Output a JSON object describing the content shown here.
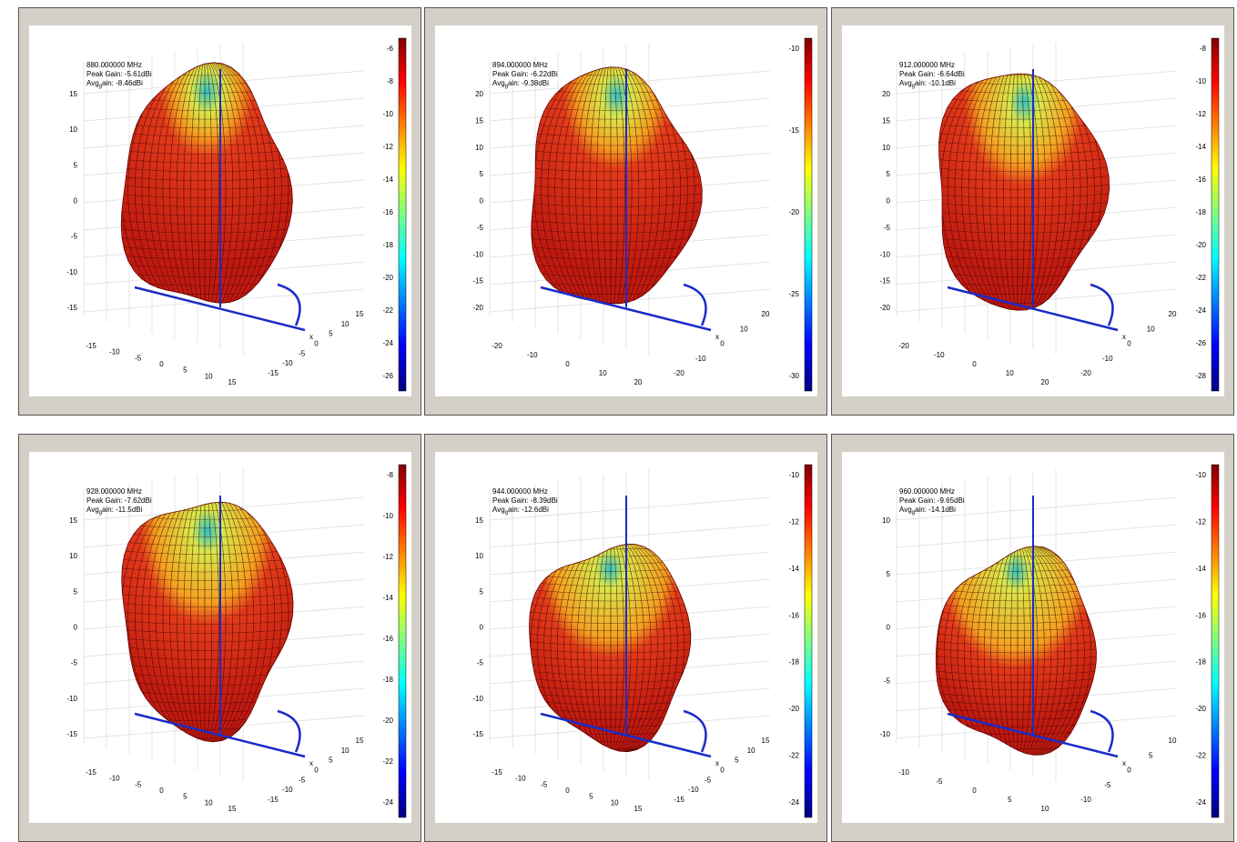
{
  "panels": [
    {
      "freq": "880.000000 MHz",
      "peak": "Peak Gain: -5.61dBi",
      "avg": [
        "Avg",
        "g",
        "ain: -8.46dBi"
      ],
      "zticks": [
        15,
        10,
        5,
        0,
        -5,
        -10,
        -15
      ],
      "xticks": [
        -15,
        -10,
        -5,
        0,
        5,
        10,
        15
      ],
      "yticks": [
        15,
        10,
        5,
        0,
        -5,
        -10,
        -15
      ],
      "cbticks": [
        -6,
        -8,
        -10,
        -12,
        -14,
        -16,
        -18,
        -20,
        -22,
        -24,
        -26
      ],
      "xlabel": "x"
    },
    {
      "freq": "894.000000 MHz",
      "peak": "Peak Gain: -6.22dBi",
      "avg": [
        "Avg",
        "g",
        "ain: -9.38dBi"
      ],
      "zticks": [
        20,
        15,
        10,
        5,
        0,
        -5,
        -10,
        -15,
        -20
      ],
      "xticks": [
        -20,
        -10,
        0,
        10,
        20
      ],
      "yticks": [
        20,
        10,
        0,
        -10,
        -20
      ],
      "cbticks": [
        -10,
        -15,
        -20,
        -25,
        -30
      ],
      "xlabel": "x"
    },
    {
      "freq": "912.000000 MHz",
      "peak": "Peak Gain: -6.64dBi",
      "avg": [
        "Avg",
        "g",
        "ain: -10.1dBi"
      ],
      "zticks": [
        20,
        15,
        10,
        5,
        0,
        -5,
        -10,
        -15,
        -20
      ],
      "xticks": [
        -20,
        -10,
        0,
        10,
        20
      ],
      "yticks": [
        20,
        10,
        0,
        -10,
        -20
      ],
      "cbticks": [
        -8,
        -10,
        -12,
        -14,
        -16,
        -18,
        -20,
        -22,
        -24,
        -26,
        -28
      ],
      "xlabel": "x"
    },
    {
      "freq": "928.000000 MHz",
      "peak": "Peak Gain: -7.62dBi",
      "avg": [
        "Avg",
        "g",
        "ain: -11.5dBi"
      ],
      "zticks": [
        15,
        10,
        5,
        0,
        -5,
        -10,
        -15
      ],
      "xticks": [
        -15,
        -10,
        -5,
        0,
        5,
        10,
        15
      ],
      "yticks": [
        15,
        10,
        5,
        0,
        -5,
        -10,
        -15
      ],
      "cbticks": [
        -8,
        -10,
        -12,
        -14,
        -16,
        -18,
        -20,
        -22,
        -24
      ],
      "xlabel": "x"
    },
    {
      "freq": "944.000000 MHz",
      "peak": "Peak Gain: -8.39dBi",
      "avg": [
        "Avg",
        "g",
        "ain: -12.6dBi"
      ],
      "zticks": [
        15,
        10,
        5,
        0,
        -5,
        -10,
        -15
      ],
      "xticks": [
        -15,
        -10,
        -5,
        0,
        5,
        10,
        15
      ],
      "yticks": [
        15,
        10,
        5,
        0,
        -5,
        -10,
        -15
      ],
      "cbticks": [
        -10,
        -12,
        -14,
        -16,
        -18,
        -20,
        -22,
        -24
      ],
      "xlabel": "x"
    },
    {
      "freq": "960.000000 MHz",
      "peak": "Peak Gain: -9.65dBi",
      "avg": [
        "Avg",
        "g",
        "ain: -14.1dBi"
      ],
      "zticks": [
        10,
        5,
        0,
        -5,
        -10
      ],
      "xticks": [
        -10,
        -5,
        0,
        5,
        10
      ],
      "yticks": [
        10,
        5,
        0,
        -5,
        -10
      ],
      "cbticks": [
        -10,
        -12,
        -14,
        -16,
        -18,
        -20,
        -22,
        -24
      ],
      "xlabel": "x"
    }
  ]
}
